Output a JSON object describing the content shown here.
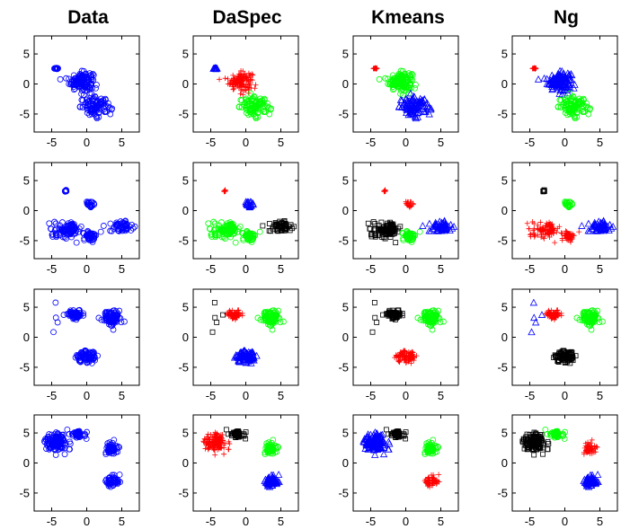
{
  "figure": {
    "column_titles": [
      "Data",
      "DaSpec",
      "Kmeans",
      "Ng"
    ]
  },
  "colors": {
    "blue": "#0000ff",
    "red": "#ff0000",
    "green": "#00ff00",
    "black": "#000000"
  },
  "chart_data": {
    "type": "scatter",
    "layout": "4x4 grid of scatter panels",
    "xlim": [
      -7.5,
      7.5
    ],
    "ylim": [
      -8,
      8
    ],
    "x_ticks": [
      -5,
      0,
      5
    ],
    "y_ticks": [
      5,
      0,
      -5
    ],
    "grid": false,
    "rows": [
      {
        "clusters": [
          {
            "center": [
              -4.3,
              2.6
            ],
            "spread": [
              0.15,
              0.1
            ],
            "n": 10
          },
          {
            "center": [
              -0.8,
              0.5
            ],
            "spread": [
              0.85,
              0.75
            ],
            "n": 140
          },
          {
            "center": [
              1.3,
              -3.8
            ],
            "spread": [
              1.1,
              0.75
            ],
            "n": 100
          }
        ],
        "panels": [
          {
            "assign": [
              "blue",
              "blue",
              "blue"
            ],
            "markers": [
              "circle",
              "circle",
              "circle"
            ]
          },
          {
            "assign": [
              "blue",
              "red",
              "green"
            ],
            "markers": [
              "triangle",
              "plus",
              "circle"
            ]
          },
          {
            "assign": [
              "red",
              "green",
              "blue"
            ],
            "markers": [
              "plus",
              "circle",
              "triangle"
            ]
          },
          {
            "assign": [
              "red",
              "blue",
              "green"
            ],
            "markers": [
              "plus",
              "triangle",
              "circle"
            ]
          }
        ]
      },
      {
        "clusters": [
          {
            "center": [
              -3.0,
              3.2
            ],
            "spread": [
              0.1,
              0.1
            ],
            "n": 6
          },
          {
            "center": [
              0.5,
              1.1
            ],
            "spread": [
              0.3,
              0.3
            ],
            "n": 20
          },
          {
            "center": [
              -2.7,
              -3.2
            ],
            "spread": [
              1.0,
              0.6
            ],
            "n": 100
          },
          {
            "center": [
              0.5,
              -4.2
            ],
            "spread": [
              0.5,
              0.4
            ],
            "n": 50
          },
          {
            "center": [
              4.9,
              -2.6
            ],
            "spread": [
              0.8,
              0.5
            ],
            "n": 55
          }
        ],
        "panels": [
          {
            "assign": [
              "blue",
              "blue",
              "blue",
              "blue",
              "blue"
            ],
            "markers": [
              "circle",
              "circle",
              "circle",
              "circle",
              "circle"
            ]
          },
          {
            "assign": [
              "red",
              "blue",
              "green",
              "green",
              "black"
            ],
            "markers": [
              "plus",
              "triangle",
              "circle",
              "circle",
              "square"
            ]
          },
          {
            "assign": [
              "red",
              "red",
              "black",
              "green",
              "blue"
            ],
            "markers": [
              "plus",
              "plus",
              "square",
              "circle",
              "triangle"
            ]
          },
          {
            "assign": [
              "black",
              "green",
              "red",
              "red",
              "blue"
            ],
            "markers": [
              "square",
              "circle",
              "plus",
              "plus",
              "triangle"
            ]
          }
        ]
      },
      {
        "clusters": [
          {
            "center": [
              -1.6,
              3.8
            ],
            "spread": [
              0.5,
              0.35
            ],
            "n": 70
          },
          {
            "center": [
              3.6,
              3.2
            ],
            "spread": [
              0.7,
              0.6
            ],
            "n": 90
          },
          {
            "center": [
              0.1,
              -3.2
            ],
            "spread": [
              0.75,
              0.55
            ],
            "n": 80
          },
          {
            "center": [
              -4.2,
              3.0
            ],
            "spread": [
              0.45,
              0.8
            ],
            "n": 5
          }
        ],
        "panels": [
          {
            "assign": [
              "blue",
              "blue",
              "blue",
              "blue"
            ],
            "markers": [
              "circle",
              "circle",
              "circle",
              "circle"
            ]
          },
          {
            "assign": [
              "red",
              "green",
              "blue",
              "black"
            ],
            "markers": [
              "plus",
              "circle",
              "triangle",
              "square"
            ]
          },
          {
            "assign": [
              "black",
              "green",
              "red",
              "black"
            ],
            "markers": [
              "square",
              "circle",
              "plus",
              "square"
            ]
          },
          {
            "assign": [
              "red",
              "green",
              "black",
              "blue"
            ],
            "markers": [
              "plus",
              "circle",
              "square",
              "triangle"
            ]
          }
        ]
      },
      {
        "clusters": [
          {
            "center": [
              -4.3,
              3.4
            ],
            "spread": [
              0.8,
              0.8
            ],
            "n": 130
          },
          {
            "center": [
              -1.2,
              4.8
            ],
            "spread": [
              0.55,
              0.35
            ],
            "n": 50
          },
          {
            "center": [
              3.6,
              2.5
            ],
            "spread": [
              0.5,
              0.5
            ],
            "n": 50
          },
          {
            "center": [
              3.6,
              -3.0
            ],
            "spread": [
              0.6,
              0.5
            ],
            "n": 55
          }
        ],
        "panels": [
          {
            "assign": [
              "blue",
              "blue",
              "blue",
              "blue"
            ],
            "markers": [
              "circle",
              "circle",
              "circle",
              "circle"
            ]
          },
          {
            "assign": [
              "red",
              "black",
              "green",
              "blue"
            ],
            "markers": [
              "plus",
              "square",
              "circle",
              "triangle"
            ]
          },
          {
            "assign": [
              "blue",
              "black",
              "green",
              "red"
            ],
            "markers": [
              "triangle",
              "square",
              "circle",
              "plus"
            ]
          },
          {
            "assign": [
              "black",
              "green",
              "red",
              "blue"
            ],
            "markers": [
              "square",
              "circle",
              "plus",
              "triangle"
            ]
          }
        ]
      }
    ]
  }
}
